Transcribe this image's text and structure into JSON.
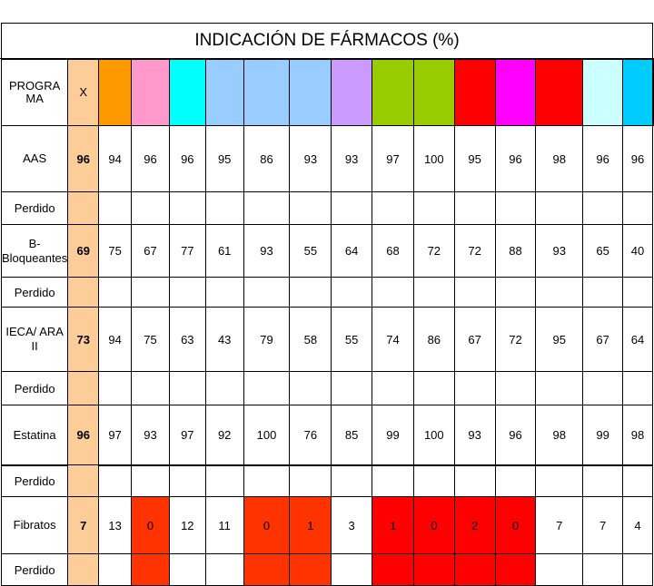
{
  "title": "INDICACIÓN DE FÁRMACOS (%)",
  "header": {
    "programa_label": "PROGRA MA",
    "x_label": "X",
    "program_colors": [
      "#ff9900",
      "#ff99cc",
      "#00ffff",
      "#99ccff",
      "#99ccff",
      "#99ccff",
      "#cc99ff",
      "#99cc00",
      "#99cc00",
      "#ff0000",
      "#ff00ff",
      "#ff0000",
      "#ccffff",
      "#00ccff",
      "#c0c0c0"
    ]
  },
  "lost_label": "Perdido",
  "rows": [
    {
      "name": "AAS",
      "x": "96",
      "values": [
        "94",
        "96",
        "96",
        "95",
        "86",
        "93",
        "93",
        "97",
        "100",
        "95",
        "96",
        "98",
        "96",
        "96"
      ]
    },
    {
      "name": "B-Bloqueantes",
      "x": "69",
      "values": [
        "75",
        "67",
        "77",
        "61",
        "93",
        "55",
        "64",
        "68",
        "72",
        "72",
        "88",
        "93",
        "65",
        "40"
      ]
    },
    {
      "name": "IECA/ ARA II",
      "x": "73",
      "values": [
        "94",
        "75",
        "63",
        "43",
        "79",
        "58",
        "55",
        "74",
        "86",
        "67",
        "72",
        "95",
        "67",
        "64"
      ]
    },
    {
      "name": "Estatina",
      "x": "96",
      "values": [
        "97",
        "93",
        "97",
        "92",
        "100",
        "76",
        "85",
        "99",
        "100",
        "93",
        "96",
        "98",
        "99",
        "98"
      ]
    },
    {
      "name": "Fibratos",
      "x": "7",
      "values": [
        "13",
        "0",
        "12",
        "11",
        "0",
        "1",
        "3",
        "1",
        "0",
        "2",
        "0",
        "7",
        "7",
        "4"
      ]
    }
  ],
  "highlight": {
    "color_a": "#ff3300",
    "color_b": "#ff0000",
    "fibratos_red_columns": [
      1,
      4,
      5,
      7,
      8,
      9,
      10
    ]
  }
}
